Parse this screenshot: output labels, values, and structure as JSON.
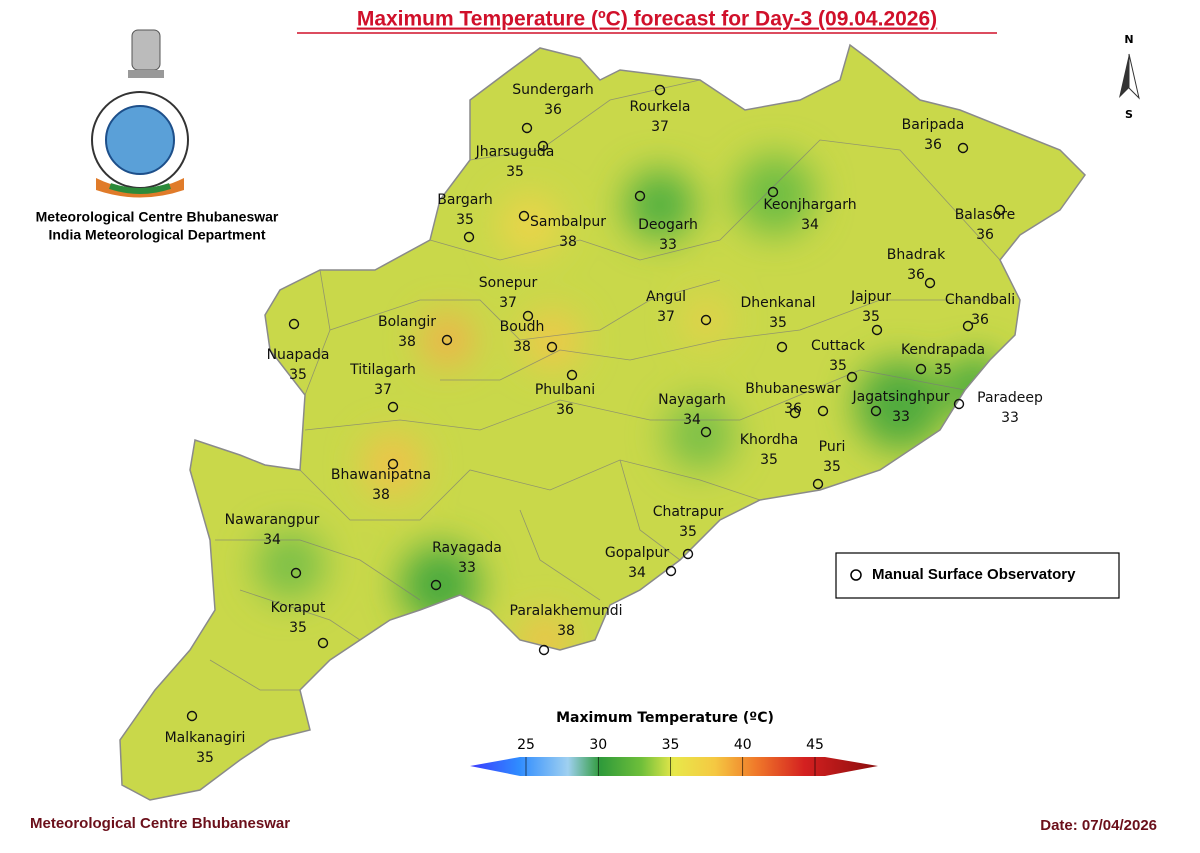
{
  "title": "Maximum Temperature (ºC) forecast for Day-3 (09.04.2026)",
  "org": {
    "line1": "Meteorological Centre Bhubaneswar",
    "line2": "India Meteorological Department"
  },
  "compass": {
    "north": "N",
    "south": "S"
  },
  "stations": [
    {
      "name": "Sundergarh",
      "value": 36
    },
    {
      "name": "Rourkela",
      "value": 37
    },
    {
      "name": "Jharsuguda",
      "value": 35
    },
    {
      "name": "Baripada",
      "value": 36
    },
    {
      "name": "Bargarh",
      "value": 35
    },
    {
      "name": "Sambalpur",
      "value": 38
    },
    {
      "name": "Deogarh",
      "value": 33
    },
    {
      "name": "Keonjhargarh",
      "value": 34
    },
    {
      "name": "Balasore",
      "value": 36
    },
    {
      "name": "Bhadrak",
      "value": 36
    },
    {
      "name": "Sonepur",
      "value": 37
    },
    {
      "name": "Angul",
      "value": 37
    },
    {
      "name": "Dhenkanal",
      "value": 35
    },
    {
      "name": "Jajpur",
      "value": 35
    },
    {
      "name": "Chandbali",
      "value": 36
    },
    {
      "name": "Nuapada",
      "value": 35
    },
    {
      "name": "Bolangir",
      "value": 38
    },
    {
      "name": "Boudh",
      "value": 38
    },
    {
      "name": "Cuttack",
      "value": 35
    },
    {
      "name": "Kendrapada",
      "value": 35
    },
    {
      "name": "Titilagarh",
      "value": 37
    },
    {
      "name": "Phulbani",
      "value": 36
    },
    {
      "name": "Bhubaneswar",
      "value": 36
    },
    {
      "name": "Jagatsinghpur",
      "value": 33
    },
    {
      "name": "Paradeep",
      "value": 33
    },
    {
      "name": "Nayagarh",
      "value": 34
    },
    {
      "name": "Khordha",
      "value": 35
    },
    {
      "name": "Puri",
      "value": 35
    },
    {
      "name": "Bhawanipatna",
      "value": 38
    },
    {
      "name": "Chatrapur",
      "value": 35
    },
    {
      "name": "Nawarangpur",
      "value": 34
    },
    {
      "name": "Rayagada",
      "value": 33
    },
    {
      "name": "Gopalpur",
      "value": 34
    },
    {
      "name": "Koraput",
      "value": 35
    },
    {
      "name": "Paralakhemundi",
      "value": 38
    },
    {
      "name": "Malkanagiri",
      "value": 35
    }
  ],
  "legend": {
    "marker_label": "Manual Surface Observatory"
  },
  "colorbar": {
    "title": "Maximum Temperature (ºC)",
    "ticks": [
      25,
      30,
      35,
      40,
      45
    ]
  },
  "footer": {
    "left": "Meteorological Centre Bhubaneswar",
    "date": "Date: 07/04/2026"
  }
}
